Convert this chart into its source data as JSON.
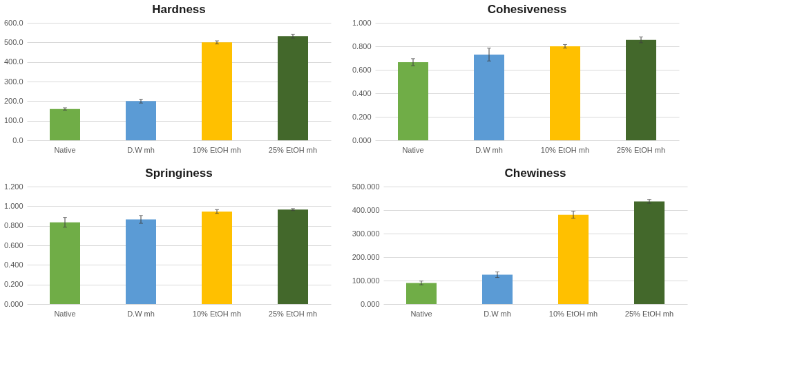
{
  "chart_data": [
    {
      "type": "bar",
      "title": "Hardness",
      "categories": [
        "Native",
        "D.W mh",
        "10% EtOH mh",
        "25% EtOH mh"
      ],
      "values": [
        160,
        200,
        500,
        532
      ],
      "errors": [
        6,
        10,
        8,
        10
      ],
      "colors": [
        "#70ad47",
        "#5b9bd5",
        "#ffc000",
        "#43682b"
      ],
      "ylim": [
        0,
        600
      ],
      "yticks": [
        {
          "value": 0,
          "label": "0.0"
        },
        {
          "value": 100,
          "label": "100.0"
        },
        {
          "value": 200,
          "label": "200.0"
        },
        {
          "value": 300,
          "label": "300.0"
        },
        {
          "value": 400,
          "label": "400.0"
        },
        {
          "value": 500,
          "label": "500.0"
        },
        {
          "value": 600,
          "label": "600.0"
        }
      ],
      "grid": "y"
    },
    {
      "type": "bar",
      "title": "Cohesiveness",
      "categories": [
        "Native",
        "D.W mh",
        "10% EtOH mh",
        "25% EtOH mh"
      ],
      "values": [
        0.665,
        0.73,
        0.8,
        0.855
      ],
      "errors": [
        0.03,
        0.055,
        0.015,
        0.025
      ],
      "colors": [
        "#70ad47",
        "#5b9bd5",
        "#ffc000",
        "#43682b"
      ],
      "ylim": [
        0,
        1
      ],
      "yticks": [
        {
          "value": 0,
          "label": "0.000"
        },
        {
          "value": 0.2,
          "label": "0.200"
        },
        {
          "value": 0.4,
          "label": "0.400"
        },
        {
          "value": 0.6,
          "label": "0.600"
        },
        {
          "value": 0.8,
          "label": "0.800"
        },
        {
          "value": 1,
          "label": "1.000"
        }
      ],
      "grid": "y"
    },
    {
      "type": "bar",
      "title": "Springiness",
      "categories": [
        "Native",
        "D.W mh",
        "10% EtOH mh",
        "25% EtOH mh"
      ],
      "values": [
        0.835,
        0.865,
        0.945,
        0.965
      ],
      "errors": [
        0.05,
        0.04,
        0.02,
        0.01
      ],
      "colors": [
        "#70ad47",
        "#5b9bd5",
        "#ffc000",
        "#43682b"
      ],
      "ylim": [
        0,
        1.2
      ],
      "yticks": [
        {
          "value": 0,
          "label": "0.000"
        },
        {
          "value": 0.2,
          "label": "0.200"
        },
        {
          "value": 0.4,
          "label": "0.400"
        },
        {
          "value": 0.6,
          "label": "0.600"
        },
        {
          "value": 0.8,
          "label": "0.800"
        },
        {
          "value": 1,
          "label": "1.000"
        },
        {
          "value": 1.2,
          "label": "1.200"
        }
      ],
      "grid": "y"
    },
    {
      "type": "bar",
      "title": "Chewiness",
      "categories": [
        "Native",
        "D.W mh",
        "10% EtOH mh",
        "25% EtOH mh"
      ],
      "values": [
        90,
        125,
        380,
        437
      ],
      "errors": [
        8,
        12,
        15,
        8
      ],
      "colors": [
        "#70ad47",
        "#5b9bd5",
        "#ffc000",
        "#43682b"
      ],
      "ylim": [
        0,
        500
      ],
      "yticks": [
        {
          "value": 0,
          "label": "0.000"
        },
        {
          "value": 100,
          "label": "100.000"
        },
        {
          "value": 200,
          "label": "200.000"
        },
        {
          "value": 300,
          "label": "300.000"
        },
        {
          "value": 400,
          "label": "400.000"
        },
        {
          "value": 500,
          "label": "500.000"
        }
      ],
      "grid": "y"
    }
  ]
}
